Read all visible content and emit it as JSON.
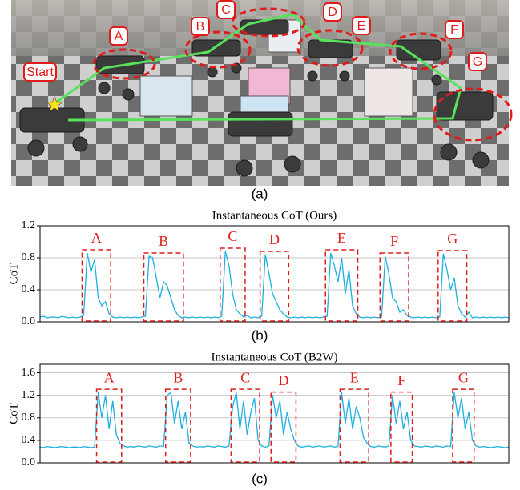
{
  "figure": {
    "photo_labels": [
      "Start",
      "A",
      "B",
      "C",
      "D",
      "E",
      "F",
      "G"
    ],
    "captions": [
      "(a)",
      "(b)",
      "(c)"
    ]
  },
  "chart_data": [
    {
      "type": "line",
      "title": "Instantaneous CoT (Ours)",
      "ylabel": "CoT",
      "color": "#1cb0e0",
      "grid": true,
      "ylim": [
        0,
        1.2
      ],
      "yticks": [
        {
          "value": 0,
          "label": "0.0"
        },
        0.4,
        0.8,
        1.2
      ],
      "values": [
        0.06,
        0.07,
        0.05,
        0.06,
        0.06,
        0.05,
        0.07,
        0.06,
        0.05,
        0.06,
        0.05,
        0.06,
        0.08,
        0.86,
        0.62,
        0.78,
        0.3,
        0.2,
        0.25,
        0.1,
        0.06,
        0.05,
        0.06,
        0.05,
        0.06,
        0.05,
        0.06,
        0.05,
        0.06,
        0.07,
        0.82,
        0.8,
        0.55,
        0.3,
        0.5,
        0.45,
        0.3,
        0.15,
        0.08,
        0.05,
        0.06,
        0.05,
        0.06,
        0.05,
        0.06,
        0.05,
        0.06,
        0.05,
        0.06,
        0.05,
        0.07,
        0.88,
        0.7,
        0.35,
        0.15,
        0.1,
        0.06,
        0.08,
        0.05,
        0.06,
        0.05,
        0.07,
        0.84,
        0.6,
        0.35,
        0.25,
        0.15,
        0.1,
        0.06,
        0.05,
        0.06,
        0.05,
        0.06,
        0.05,
        0.06,
        0.05,
        0.06,
        0.05,
        0.06,
        0.07,
        0.86,
        0.7,
        0.5,
        0.8,
        0.35,
        0.65,
        0.2,
        0.1,
        0.06,
        0.05,
        0.06,
        0.05,
        0.06,
        0.05,
        0.06,
        0.82,
        0.6,
        0.3,
        0.25,
        0.12,
        0.15,
        0.08,
        0.06,
        0.05,
        0.06,
        0.05,
        0.06,
        0.05,
        0.06,
        0.05,
        0.06,
        0.85,
        0.65,
        0.4,
        0.55,
        0.2,
        0.1,
        0.06,
        0.12,
        0.05,
        0.06,
        0.05,
        0.06,
        0.05,
        0.06,
        0.05,
        0.06,
        0.05,
        0.06,
        0.05
      ],
      "annotations": [
        {
          "label": "A",
          "span": [
            12,
            19
          ]
        },
        {
          "label": "B",
          "span": [
            29,
            39
          ]
        },
        {
          "label": "C",
          "span": [
            50,
            56
          ]
        },
        {
          "label": "D",
          "span": [
            61,
            68
          ]
        },
        {
          "label": "E",
          "span": [
            79,
            87
          ]
        },
        {
          "label": "F",
          "span": [
            94,
            101
          ]
        },
        {
          "label": "G",
          "span": [
            110,
            117
          ]
        }
      ]
    },
    {
      "type": "line",
      "title": "Instantaneous CoT (B2W)",
      "ylabel": "CoT",
      "color": "#1cb0e0",
      "grid": true,
      "ylim": [
        0,
        1.75
      ],
      "yticks": [
        {
          "value": 0,
          "label": "0.0"
        },
        0.4,
        0.8,
        1.2,
        1.6
      ],
      "values": [
        0.28,
        0.27,
        0.29,
        0.28,
        0.27,
        0.28,
        0.29,
        0.28,
        0.27,
        0.28,
        0.28,
        0.27,
        0.29,
        0.28,
        0.27,
        0.28,
        1.25,
        0.8,
        1.2,
        0.6,
        1.1,
        0.5,
        0.35,
        0.3,
        0.28,
        0.29,
        0.28,
        0.3,
        0.29,
        0.28,
        0.3,
        0.29,
        0.28,
        0.3,
        0.29,
        1.2,
        1.25,
        0.7,
        1.1,
        0.6,
        0.9,
        0.35,
        0.3,
        0.28,
        0.29,
        0.28,
        0.3,
        0.29,
        0.28,
        0.3,
        0.29,
        0.28,
        0.3,
        1.0,
        1.25,
        0.6,
        1.1,
        0.5,
        0.9,
        1.15,
        0.4,
        0.3,
        0.28,
        0.3,
        1.2,
        0.8,
        1.1,
        0.5,
        0.9,
        0.6,
        0.4,
        0.3,
        0.28,
        0.29,
        0.3,
        0.28,
        0.29,
        0.3,
        0.28,
        0.29,
        0.3,
        0.28,
        0.29,
        1.25,
        0.7,
        1.15,
        0.6,
        1.0,
        0.8,
        0.45,
        0.35,
        0.29,
        0.28,
        0.3,
        0.29,
        0.28,
        0.3,
        1.2,
        0.7,
        1.1,
        0.6,
        0.9,
        0.4,
        0.3,
        0.29,
        0.28,
        0.3,
        0.29,
        0.28,
        0.3,
        0.29,
        0.28,
        0.3,
        0.29,
        1.25,
        0.8,
        1.15,
        0.6,
        0.9,
        0.4,
        0.3,
        0.28,
        0.29,
        0.28,
        0.27,
        0.28,
        0.29,
        0.28,
        0.27,
        0.28
      ],
      "annotations": [
        {
          "label": "A",
          "span": [
            16,
            22
          ]
        },
        {
          "label": "B",
          "span": [
            35,
            41
          ]
        },
        {
          "label": "C",
          "span": [
            53,
            60
          ]
        },
        {
          "label": "D",
          "span": [
            64,
            70
          ]
        },
        {
          "label": "E",
          "span": [
            83,
            90
          ]
        },
        {
          "label": "F",
          "span": [
            97,
            102
          ]
        },
        {
          "label": "G",
          "span": [
            114,
            119
          ]
        }
      ]
    }
  ]
}
